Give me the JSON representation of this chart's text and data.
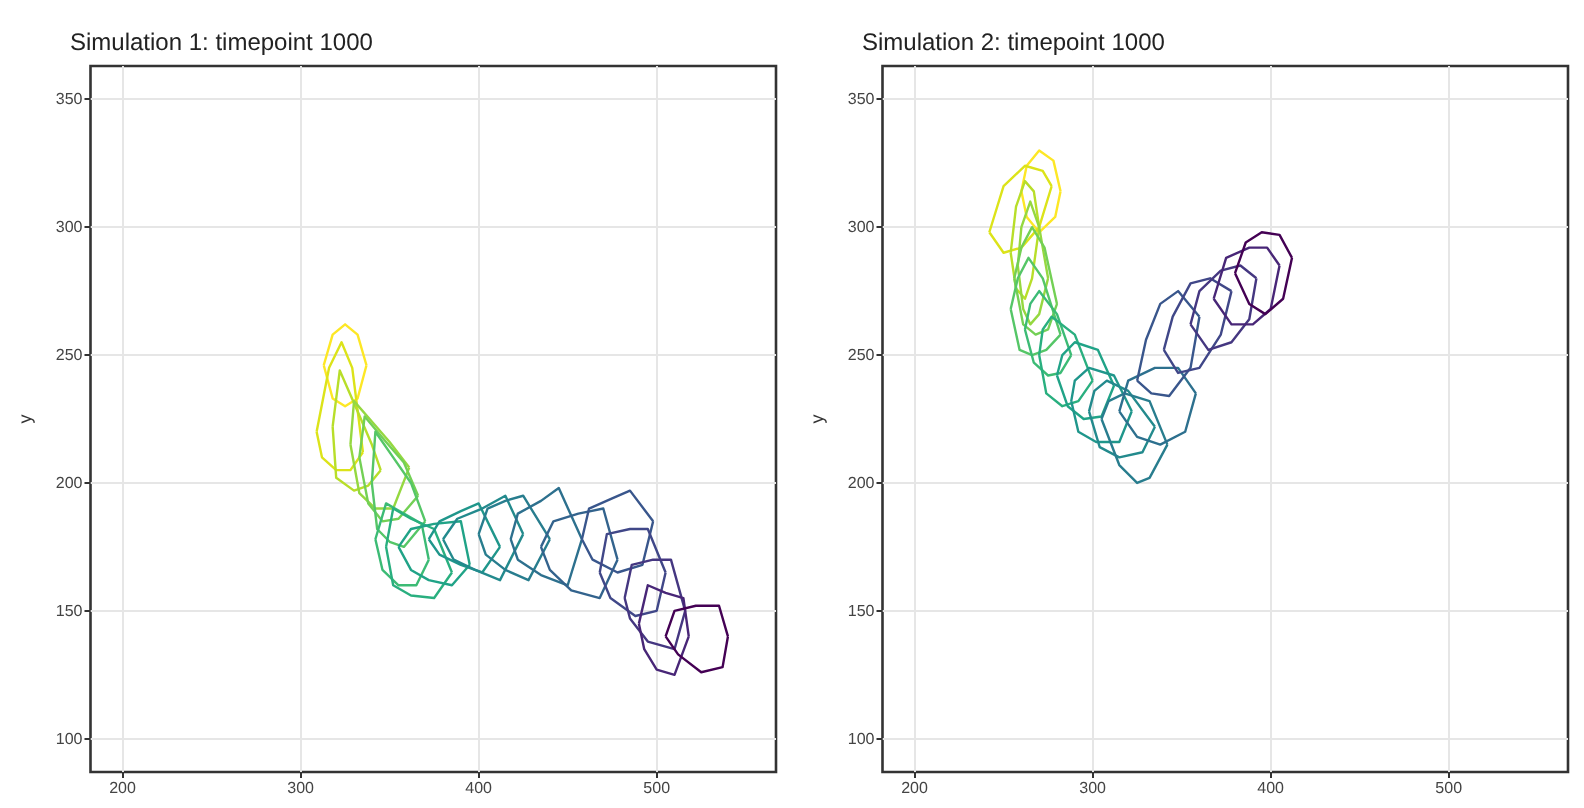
{
  "chart_data": [
    {
      "type": "line",
      "title": "Simulation 1: timepoint 1000",
      "ylabel": "y",
      "xlim": [
        182,
        567
      ],
      "ylim": [
        87,
        363
      ],
      "xticks": [
        200,
        300,
        400,
        500
      ],
      "yticks": [
        100,
        150,
        200,
        250,
        300,
        350
      ],
      "grid": true,
      "marker": "none",
      "series": [
        {
          "color": "#fde725",
          "x": [
            313,
            318,
            325,
            332,
            337,
            null,
            313,
            318,
            325,
            332,
            337
          ],
          "values": [
            246,
            258,
            262,
            258,
            246,
            null,
            246,
            233,
            230,
            233,
            246
          ]
        },
        {
          "color": "#dce319",
          "x": [
            309,
            316,
            323,
            329,
            335,
            null,
            309,
            312,
            320,
            328,
            335
          ],
          "values": [
            220,
            245,
            255,
            245,
            212,
            null,
            220,
            210,
            205,
            205,
            212
          ]
        },
        {
          "color": "#b8de29",
          "x": [
            318,
            322,
            332,
            340,
            345,
            null,
            318,
            320,
            330,
            338,
            345
          ],
          "values": [
            222,
            244,
            228,
            215,
            205,
            null,
            222,
            202,
            197,
            199,
            205
          ]
        },
        {
          "color": "#95d840",
          "x": [
            328,
            330,
            340,
            350,
            361,
            null,
            328,
            333,
            342,
            352,
            361
          ],
          "values": [
            215,
            232,
            224,
            216,
            206,
            null,
            215,
            196,
            190,
            190,
            206
          ]
        },
        {
          "color": "#73d055",
          "x": [
            333,
            336,
            348,
            358,
            366,
            null,
            333,
            338,
            346,
            355,
            366
          ],
          "values": [
            210,
            226,
            216,
            208,
            195,
            null,
            210,
            192,
            185,
            186,
            195
          ]
        },
        {
          "color": "#55c667",
          "x": [
            340,
            342,
            352,
            362,
            370,
            null,
            340,
            343,
            350,
            358,
            370
          ],
          "values": [
            200,
            220,
            210,
            200,
            185,
            null,
            200,
            182,
            177,
            175,
            185
          ]
        },
        {
          "color": "#3cbb75",
          "x": [
            342,
            348,
            358,
            368,
            372,
            null,
            342,
            346,
            355,
            365,
            372
          ],
          "values": [
            178,
            192,
            188,
            184,
            170,
            null,
            178,
            166,
            160,
            160,
            170
          ]
        },
        {
          "color": "#29af7f",
          "x": [
            348,
            352,
            362,
            375,
            385,
            null,
            348,
            352,
            362,
            375,
            385
          ],
          "values": [
            175,
            190,
            186,
            182,
            165,
            null,
            175,
            160,
            156,
            155,
            165
          ]
        },
        {
          "color": "#20a387",
          "x": [
            355,
            362,
            375,
            390,
            395,
            null,
            355,
            362,
            372,
            385,
            395
          ],
          "values": [
            175,
            182,
            184,
            185,
            168,
            null,
            175,
            166,
            162,
            160,
            168
          ]
        },
        {
          "color": "#1f968b",
          "x": [
            372,
            378,
            390,
            400,
            412,
            null,
            372,
            378,
            390,
            402,
            412
          ],
          "values": [
            178,
            185,
            189,
            192,
            175,
            null,
            178,
            172,
            168,
            165,
            175
          ]
        },
        {
          "color": "#238a8d",
          "x": [
            380,
            388,
            402,
            415,
            425,
            null,
            380,
            386,
            398,
            412,
            425
          ],
          "values": [
            178,
            186,
            190,
            195,
            180,
            null,
            178,
            170,
            166,
            162,
            180
          ]
        },
        {
          "color": "#287d8e",
          "x": [
            400,
            405,
            415,
            425,
            440,
            null,
            400,
            404,
            415,
            428,
            440
          ],
          "values": [
            180,
            190,
            193,
            195,
            178,
            null,
            180,
            172,
            166,
            162,
            178
          ]
        },
        {
          "color": "#2d708e",
          "x": [
            418,
            422,
            435,
            445,
            458,
            null,
            418,
            422,
            435,
            450,
            458
          ],
          "values": [
            178,
            188,
            193,
            198,
            178,
            null,
            178,
            170,
            164,
            160,
            178
          ]
        },
        {
          "color": "#33638d",
          "x": [
            435,
            442,
            456,
            470,
            478,
            null,
            435,
            440,
            452,
            468,
            478
          ],
          "values": [
            175,
            185,
            188,
            190,
            170,
            null,
            175,
            166,
            158,
            155,
            170
          ]
        },
        {
          "color": "#39568c",
          "x": [
            458,
            462,
            475,
            485,
            498,
            null,
            458,
            464,
            478,
            492,
            498
          ],
          "values": [
            178,
            190,
            194,
            197,
            185,
            null,
            178,
            170,
            165,
            168,
            185
          ]
        },
        {
          "color": "#404788",
          "x": [
            468,
            472,
            485,
            495,
            505,
            null,
            468,
            474,
            488,
            500,
            505
          ],
          "values": [
            165,
            180,
            182,
            182,
            165,
            null,
            165,
            155,
            148,
            150,
            165
          ]
        },
        {
          "color": "#453781",
          "x": [
            482,
            486,
            498,
            508,
            516,
            null,
            482,
            485,
            495,
            510,
            516
          ],
          "values": [
            155,
            168,
            170,
            170,
            150,
            null,
            155,
            147,
            138,
            135,
            150
          ]
        },
        {
          "color": "#482677",
          "x": [
            490,
            495,
            505,
            515,
            518,
            null,
            490,
            493,
            500,
            510,
            518
          ],
          "values": [
            145,
            160,
            157,
            155,
            140,
            null,
            145,
            135,
            127,
            125,
            140
          ]
        },
        {
          "color": "#440154",
          "x": [
            505,
            510,
            522,
            535,
            540,
            null,
            505,
            512,
            525,
            537,
            540
          ],
          "values": [
            140,
            150,
            152,
            152,
            140,
            null,
            140,
            133,
            126,
            128,
            140
          ]
        }
      ]
    },
    {
      "type": "line",
      "title": "Simulation 2: timepoint 1000",
      "ylabel": "y",
      "xlim": [
        182,
        567
      ],
      "ylim": [
        87,
        363
      ],
      "xticks": [
        200,
        300,
        400,
        500
      ],
      "yticks": [
        100,
        150,
        200,
        250,
        300,
        350
      ],
      "grid": true,
      "marker": "none",
      "series": [
        {
          "color": "#fde725",
          "x": [
            260,
            263,
            270,
            278,
            282,
            null,
            260,
            263,
            270,
            279,
            282
          ],
          "values": [
            314,
            324,
            330,
            326,
            314,
            null,
            314,
            304,
            298,
            304,
            314
          ]
        },
        {
          "color": "#dce319",
          "x": [
            242,
            250,
            262,
            272,
            277,
            null,
            242,
            250,
            260,
            270,
            277
          ],
          "values": [
            298,
            316,
            324,
            322,
            316,
            null,
            298,
            290,
            292,
            300,
            316
          ]
        },
        {
          "color": "#b8de29",
          "x": [
            254,
            257,
            262,
            267,
            270,
            null,
            254,
            257,
            262,
            266,
            270
          ],
          "values": [
            290,
            308,
            318,
            314,
            300,
            null,
            290,
            276,
            272,
            280,
            300
          ]
        },
        {
          "color": "#95d840",
          "x": [
            258,
            260,
            265,
            270,
            275,
            null,
            258,
            261,
            265,
            270,
            275
          ],
          "values": [
            285,
            300,
            310,
            300,
            280,
            null,
            285,
            268,
            262,
            266,
            280
          ]
        },
        {
          "color": "#73d055",
          "x": [
            256,
            260,
            266,
            273,
            280,
            null,
            256,
            261,
            268,
            275,
            280
          ],
          "values": [
            280,
            292,
            300,
            292,
            270,
            null,
            280,
            262,
            258,
            260,
            270
          ]
        },
        {
          "color": "#55c667",
          "x": [
            254,
            258,
            264,
            272,
            282,
            null,
            254,
            259,
            266,
            274,
            282
          ],
          "values": [
            268,
            280,
            288,
            280,
            258,
            null,
            268,
            252,
            250,
            252,
            258
          ]
        },
        {
          "color": "#3cbb75",
          "x": [
            262,
            265,
            270,
            280,
            288,
            null,
            262,
            267,
            275,
            282,
            288
          ],
          "values": [
            260,
            270,
            275,
            266,
            250,
            null,
            260,
            247,
            242,
            243,
            250
          ]
        },
        {
          "color": "#29af7f",
          "x": [
            270,
            272,
            277,
            290,
            300,
            null,
            270,
            274,
            283,
            292,
            300
          ],
          "values": [
            250,
            260,
            265,
            258,
            240,
            null,
            250,
            235,
            230,
            232,
            240
          ]
        },
        {
          "color": "#20a387",
          "x": [
            280,
            283,
            290,
            303,
            312,
            null,
            280,
            286,
            295,
            305,
            312
          ],
          "values": [
            242,
            250,
            255,
            252,
            238,
            null,
            242,
            230,
            225,
            226,
            238
          ]
        },
        {
          "color": "#1f968b",
          "x": [
            288,
            290,
            298,
            312,
            322,
            null,
            288,
            292,
            302,
            315,
            322
          ],
          "values": [
            232,
            240,
            245,
            242,
            228,
            null,
            232,
            220,
            216,
            216,
            228
          ]
        },
        {
          "color": "#238a8d",
          "x": [
            298,
            301,
            308,
            320,
            335,
            null,
            298,
            304,
            315,
            328,
            335
          ],
          "values": [
            228,
            236,
            240,
            236,
            222,
            null,
            228,
            214,
            210,
            212,
            222
          ]
        },
        {
          "color": "#287d8e",
          "x": [
            305,
            309,
            318,
            332,
            342,
            null,
            305,
            315,
            325,
            332,
            342
          ],
          "values": [
            225,
            232,
            235,
            232,
            215,
            null,
            225,
            207,
            200,
            202,
            215
          ]
        },
        {
          "color": "#2d708e",
          "x": [
            315,
            320,
            335,
            348,
            358,
            null,
            315,
            325,
            338,
            352,
            358
          ],
          "values": [
            228,
            240,
            245,
            245,
            235,
            null,
            228,
            218,
            215,
            220,
            235
          ]
        },
        {
          "color": "#39568c",
          "x": [
            325,
            330,
            338,
            348,
            360,
            null,
            325,
            333,
            343,
            355,
            360
          ],
          "values": [
            240,
            256,
            270,
            275,
            265,
            null,
            240,
            235,
            234,
            245,
            265
          ]
        },
        {
          "color": "#404788",
          "x": [
            340,
            345,
            355,
            366,
            378,
            null,
            340,
            348,
            360,
            372,
            378
          ],
          "values": [
            252,
            265,
            278,
            280,
            275,
            null,
            252,
            243,
            245,
            258,
            275
          ]
        },
        {
          "color": "#453781",
          "x": [
            355,
            360,
            372,
            383,
            392,
            null,
            355,
            365,
            378,
            388,
            392
          ],
          "values": [
            262,
            275,
            283,
            285,
            280,
            null,
            262,
            252,
            255,
            264,
            280
          ]
        },
        {
          "color": "#482677",
          "x": [
            368,
            375,
            388,
            398,
            405,
            null,
            368,
            378,
            390,
            400,
            405
          ],
          "values": [
            272,
            288,
            292,
            292,
            285,
            null,
            272,
            262,
            262,
            268,
            285
          ]
        },
        {
          "color": "#440154",
          "x": [
            380,
            386,
            395,
            405,
            412,
            null,
            380,
            388,
            397,
            407,
            412
          ],
          "values": [
            282,
            294,
            298,
            297,
            288,
            null,
            282,
            270,
            266,
            272,
            288
          ]
        }
      ]
    }
  ]
}
